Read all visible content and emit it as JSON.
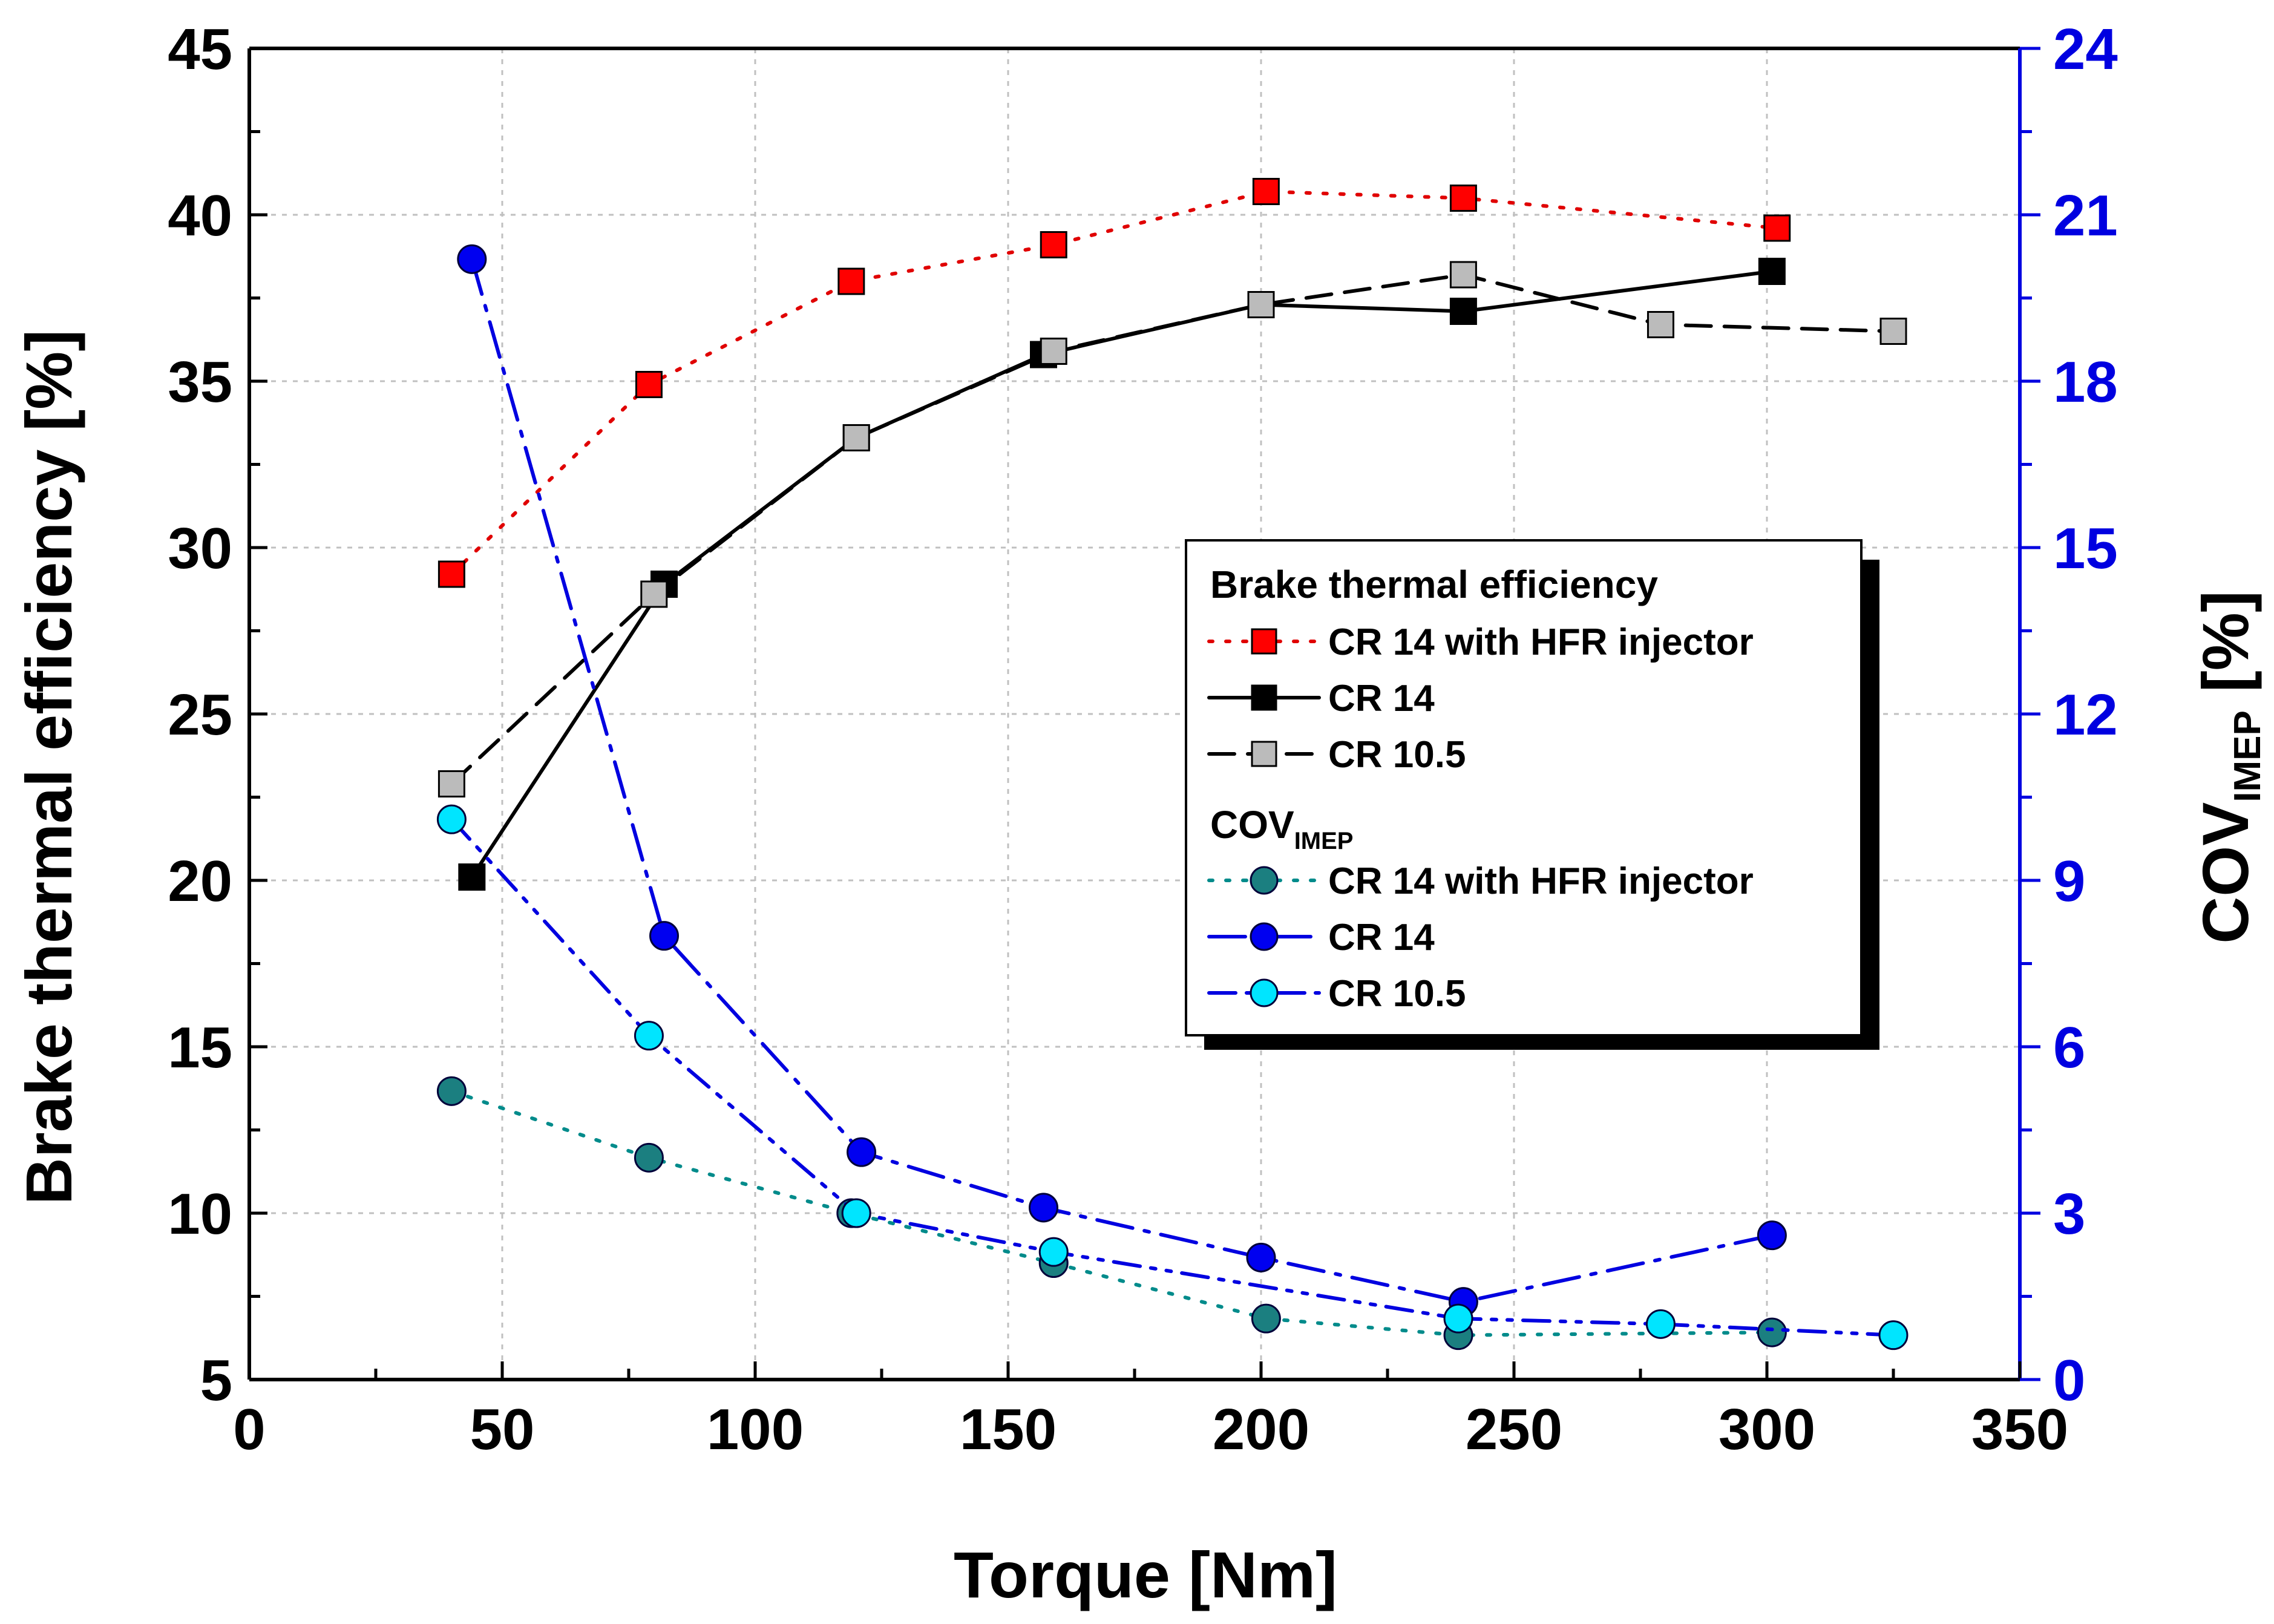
{
  "chart_data": {
    "type": "line",
    "xlabel": "Torque [Nm]",
    "ylabel": "Brake thermal efficiency [%]",
    "ylabel2_main": "COV",
    "ylabel2_sub": "IMEP",
    "ylabel2_suffix": " [%]",
    "xlim": [
      0,
      350
    ],
    "ylim": [
      5,
      45
    ],
    "ylim2": [
      0,
      24
    ],
    "xticks": [
      "0",
      "50",
      "100",
      "150",
      "200",
      "250",
      "300",
      "350"
    ],
    "yticks": [
      "5",
      "10",
      "15",
      "20",
      "25",
      "30",
      "35",
      "40",
      "45"
    ],
    "yticks2": [
      "0",
      "3",
      "6",
      "9",
      "12",
      "15",
      "18",
      "21",
      "24"
    ],
    "grid": true,
    "legend_position": "center-right",
    "legend": {
      "group1_title": "Brake thermal efficiency",
      "group2_title_main": "COV",
      "group2_title_sub": "IMEP"
    },
    "series": [
      {
        "name": "CR 14 with HFR injector",
        "group": "bte",
        "axis": "left",
        "color": "#e00000",
        "marker": "square",
        "fill": "#ff0000",
        "dash": "dotted",
        "x": [
          40,
          79,
          119,
          159,
          201,
          240,
          302
        ],
        "y": [
          29.2,
          34.9,
          38.0,
          39.1,
          40.7,
          40.5,
          39.6
        ]
      },
      {
        "name": "CR 14",
        "group": "bte",
        "axis": "left",
        "color": "#000000",
        "marker": "square",
        "fill": "#000000",
        "dash": "solid",
        "x": [
          44,
          82,
          120,
          157,
          200,
          240,
          301
        ],
        "y": [
          20.1,
          28.9,
          33.3,
          35.8,
          37.3,
          37.1,
          38.3
        ]
      },
      {
        "name": "CR 10.5",
        "group": "bte",
        "axis": "left",
        "color": "#000000",
        "marker": "square",
        "fill": "#bbbbbb",
        "dash": "dashed",
        "x": [
          40,
          80,
          120,
          159,
          200,
          240,
          279,
          325
        ],
        "y": [
          22.9,
          28.6,
          33.3,
          35.9,
          37.3,
          38.2,
          36.7,
          36.5
        ]
      },
      {
        "name": "CR 14 with HFR injector",
        "group": "cov",
        "axis": "right",
        "color": "#008b8b",
        "marker": "circle",
        "fill": "#1b7f80",
        "dash": "dotted",
        "x": [
          40,
          79,
          119,
          159,
          201,
          239,
          301
        ],
        "y": [
          5.2,
          4.0,
          3.0,
          2.1,
          1.1,
          0.8,
          0.85
        ]
      },
      {
        "name": "CR 14",
        "group": "cov",
        "axis": "right",
        "color": "#0000e0",
        "marker": "circle",
        "fill": "#0000f0",
        "dash": "dashdot",
        "x": [
          44,
          82,
          121,
          157,
          200,
          240,
          301
        ],
        "y": [
          20.2,
          8.0,
          4.1,
          3.1,
          2.2,
          1.4,
          2.6
        ]
      },
      {
        "name": "CR 10.5",
        "group": "cov",
        "axis": "right",
        "color": "#0000e0",
        "marker": "circle",
        "fill": "#00e5ff",
        "dash": "dashdotdot",
        "x": [
          40,
          79,
          120,
          159,
          239,
          279,
          325
        ],
        "y": [
          10.1,
          6.2,
          3.0,
          2.3,
          1.1,
          1.0,
          0.8
        ]
      }
    ]
  }
}
